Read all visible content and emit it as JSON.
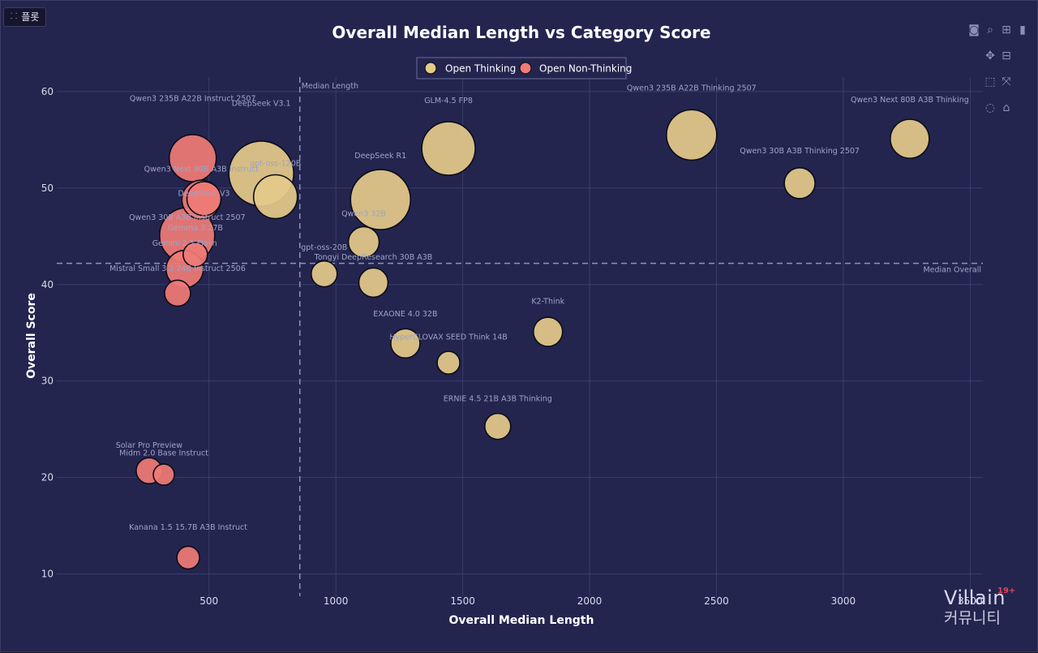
{
  "tab": {
    "label": "플롯"
  },
  "modebar": {
    "icons": [
      "camera-icon",
      "zoom-icon",
      "plus-square-icon",
      "bar-chart-icon",
      "pan-icon",
      "minus-square-icon",
      "box-select-icon",
      "autoscale-icon",
      "lasso-icon",
      "home-icon"
    ]
  },
  "watermark": {
    "logo": "Villain",
    "sub": "커뮤니티",
    "badge": "19+"
  },
  "colors": {
    "thinking": "#e3c98a",
    "non_thinking": "#ef7b76",
    "plot_bg": "#23254f",
    "grid": "#3b3d6a",
    "text": "#d9dbef",
    "annotation": "#9fa3c7"
  },
  "chart_data": {
    "type": "scatter",
    "title": "Overall Median Length vs Category Score",
    "xlabel": "Overall Median Length",
    "ylabel": "Overall Score",
    "xlim": [
      -100,
      3550
    ],
    "ylim": [
      7.7,
      61.5
    ],
    "x_ticks": [
      500,
      1000,
      1500,
      2000,
      2500,
      3000,
      3500
    ],
    "x_tick_labels": [
      "500",
      "1000",
      "1500",
      "2000",
      "2500",
      "3000",
      "3500"
    ],
    "y_ticks": [
      10,
      20,
      30,
      40,
      50,
      60
    ],
    "y_tick_labels": [
      "10",
      "20",
      "30",
      "40",
      "50",
      "60"
    ],
    "grid": true,
    "legend_position": "top-center",
    "reference_lines": [
      {
        "axis": "x",
        "value": 858,
        "label": "Median Length"
      },
      {
        "axis": "y",
        "value": 42.2,
        "label": "Median Overall"
      }
    ],
    "series": [
      {
        "name": "Open Thinking",
        "points": [
          {
            "label": "DeepSeek V3.1",
            "x": 706,
            "y": 51.5,
            "size": 40
          },
          {
            "label": "gpt-oss-120B",
            "x": 762,
            "y": 49.1,
            "size": 27
          },
          {
            "label": "DeepSeek R1",
            "x": 1176,
            "y": 48.8,
            "size": 37
          },
          {
            "label": "GLM-4.5 FP8",
            "x": 1444,
            "y": 54.1,
            "size": 33
          },
          {
            "label": "Qwen3 235B A22B Thinking 2507",
            "x": 2402,
            "y": 55.5,
            "size": 31
          },
          {
            "label": "Qwen3 Next 80B A3B Thinking",
            "x": 3262,
            "y": 55.1,
            "size": 24
          },
          {
            "label": "Qwen3 30B A3B Thinking 2507",
            "x": 2828,
            "y": 50.5,
            "size": 19
          },
          {
            "label": "Qwen3 32B",
            "x": 1110,
            "y": 44.4,
            "size": 19
          },
          {
            "label": "gpt-oss-20B",
            "x": 954,
            "y": 41.1,
            "size": 16
          },
          {
            "label": "Tongyi DeepResearch 30B A3B",
            "x": 1148,
            "y": 40.2,
            "size": 18
          },
          {
            "label": "K2-Think",
            "x": 1836,
            "y": 35.1,
            "size": 18
          },
          {
            "label": "EXAONE 4.0 32B",
            "x": 1274,
            "y": 33.9,
            "size": 18
          },
          {
            "label": "HyperCLOVAX SEED Think 14B",
            "x": 1444,
            "y": 31.9,
            "size": 14
          },
          {
            "label": "ERNIE 4.5 21B A3B Thinking",
            "x": 1638,
            "y": 25.3,
            "size": 16
          }
        ]
      },
      {
        "name": "Open Non-Thinking",
        "points": [
          {
            "label": "Qwen3 235B A22B Instruct 2507",
            "x": 436,
            "y": 53.1,
            "size": 29
          },
          {
            "label": "Qwen3 Next 80B A3B Instruct",
            "x": 470,
            "y": 48.8,
            "size": 24
          },
          {
            "label": "DeepSeek V3",
            "x": 480,
            "y": 48.9,
            "size": 21
          },
          {
            "label": "Qwen3 30B A3B Instruct 2507",
            "x": 414,
            "y": 45.1,
            "size": 34
          },
          {
            "label": "Gemma 3 27B",
            "x": 446,
            "y": 43.1,
            "size": 15
          },
          {
            "label": "Gemini 2.5 Flash",
            "x": 404,
            "y": 41.6,
            "size": 23
          },
          {
            "label": "Mistral Small 3.2 24B Instruct 2506",
            "x": 376,
            "y": 39.1,
            "size": 16
          },
          {
            "label": "Solar Pro Preview",
            "x": 264,
            "y": 20.7,
            "size": 16
          },
          {
            "label": "Midm 2.0 Base Instruct",
            "x": 322,
            "y": 20.3,
            "size": 13
          },
          {
            "label": "Kanana 1.5 15.7B A3B Instruct",
            "x": 418,
            "y": 11.7,
            "size": 14
          }
        ]
      }
    ],
    "annotations": [
      {
        "text": "Qwen3 235B A22B Instruct 2507",
        "x": 436,
        "y": 59.0,
        "series": "Open Non-Thinking"
      },
      {
        "text": "DeepSeek V3.1",
        "x": 706,
        "y": 58.5,
        "series": "Open Thinking"
      },
      {
        "text": "Qwen3 Next 80B A3B Instruct",
        "x": 470,
        "y": 51.7,
        "series": "Open Non-Thinking"
      },
      {
        "text": "gpt-oss-120B",
        "x": 762,
        "y": 52.3,
        "series": "Open Thinking"
      },
      {
        "text": "DeepSeek V3",
        "x": 480,
        "y": 49.2,
        "series": "Open Non-Thinking"
      },
      {
        "text": "DeepSeek R1",
        "x": 1176,
        "y": 53.1,
        "series": "Open Thinking"
      },
      {
        "text": "GLM-4.5 FP8",
        "x": 1444,
        "y": 58.8,
        "series": "Open Thinking"
      },
      {
        "text": "Qwen3 235B A22B Thinking 2507",
        "x": 2402,
        "y": 60.1,
        "series": "Open Thinking"
      },
      {
        "text": "Qwen3 Next 80B A3B Thinking",
        "x": 3262,
        "y": 58.9,
        "series": "Open Thinking"
      },
      {
        "text": "Qwen3 30B A3B Thinking 2507",
        "x": 2828,
        "y": 53.6,
        "series": "Open Thinking"
      },
      {
        "text": "Qwen3 32B",
        "x": 1110,
        "y": 47.1,
        "series": "Open Thinking"
      },
      {
        "text": "Qwen3 30B A3B Instruct 2507",
        "x": 414,
        "y": 46.7,
        "series": "Open Non-Thinking"
      },
      {
        "text": "Gemma 3 27B",
        "x": 446,
        "y": 45.6,
        "series": "Open Non-Thinking"
      },
      {
        "text": "Gemini 2.5 Flash",
        "x": 404,
        "y": 44.0,
        "series": "Open Non-Thinking"
      },
      {
        "text": "gpt-oss-20B",
        "x": 954,
        "y": 43.6,
        "series": "Open Thinking"
      },
      {
        "text": "Tongyi DeepResearch 30B A3B",
        "x": 1148,
        "y": 42.6,
        "series": "Open Thinking"
      },
      {
        "text": "Mistral Small 3.2 24B Instruct 2506",
        "x": 376,
        "y": 41.4,
        "series": "Open Non-Thinking"
      },
      {
        "text": "K2-Think",
        "x": 1836,
        "y": 38.0,
        "series": "Open Thinking"
      },
      {
        "text": "EXAONE 4.0 32B",
        "x": 1274,
        "y": 36.7,
        "series": "Open Thinking"
      },
      {
        "text": "HyperCLOVAX SEED Think 14B",
        "x": 1444,
        "y": 34.3,
        "series": "Open Thinking"
      },
      {
        "text": "ERNIE 4.5 21B A3B Thinking",
        "x": 1638,
        "y": 27.9,
        "series": "Open Thinking"
      },
      {
        "text": "Solar Pro Preview",
        "x": 264,
        "y": 23.1,
        "series": "Open Non-Thinking"
      },
      {
        "text": "Midm 2.0 Base Instruct",
        "x": 322,
        "y": 22.3,
        "series": "Open Non-Thinking"
      },
      {
        "text": "Kanana 1.5 15.7B A3B Instruct",
        "x": 418,
        "y": 14.6,
        "series": "Open Non-Thinking"
      }
    ]
  }
}
